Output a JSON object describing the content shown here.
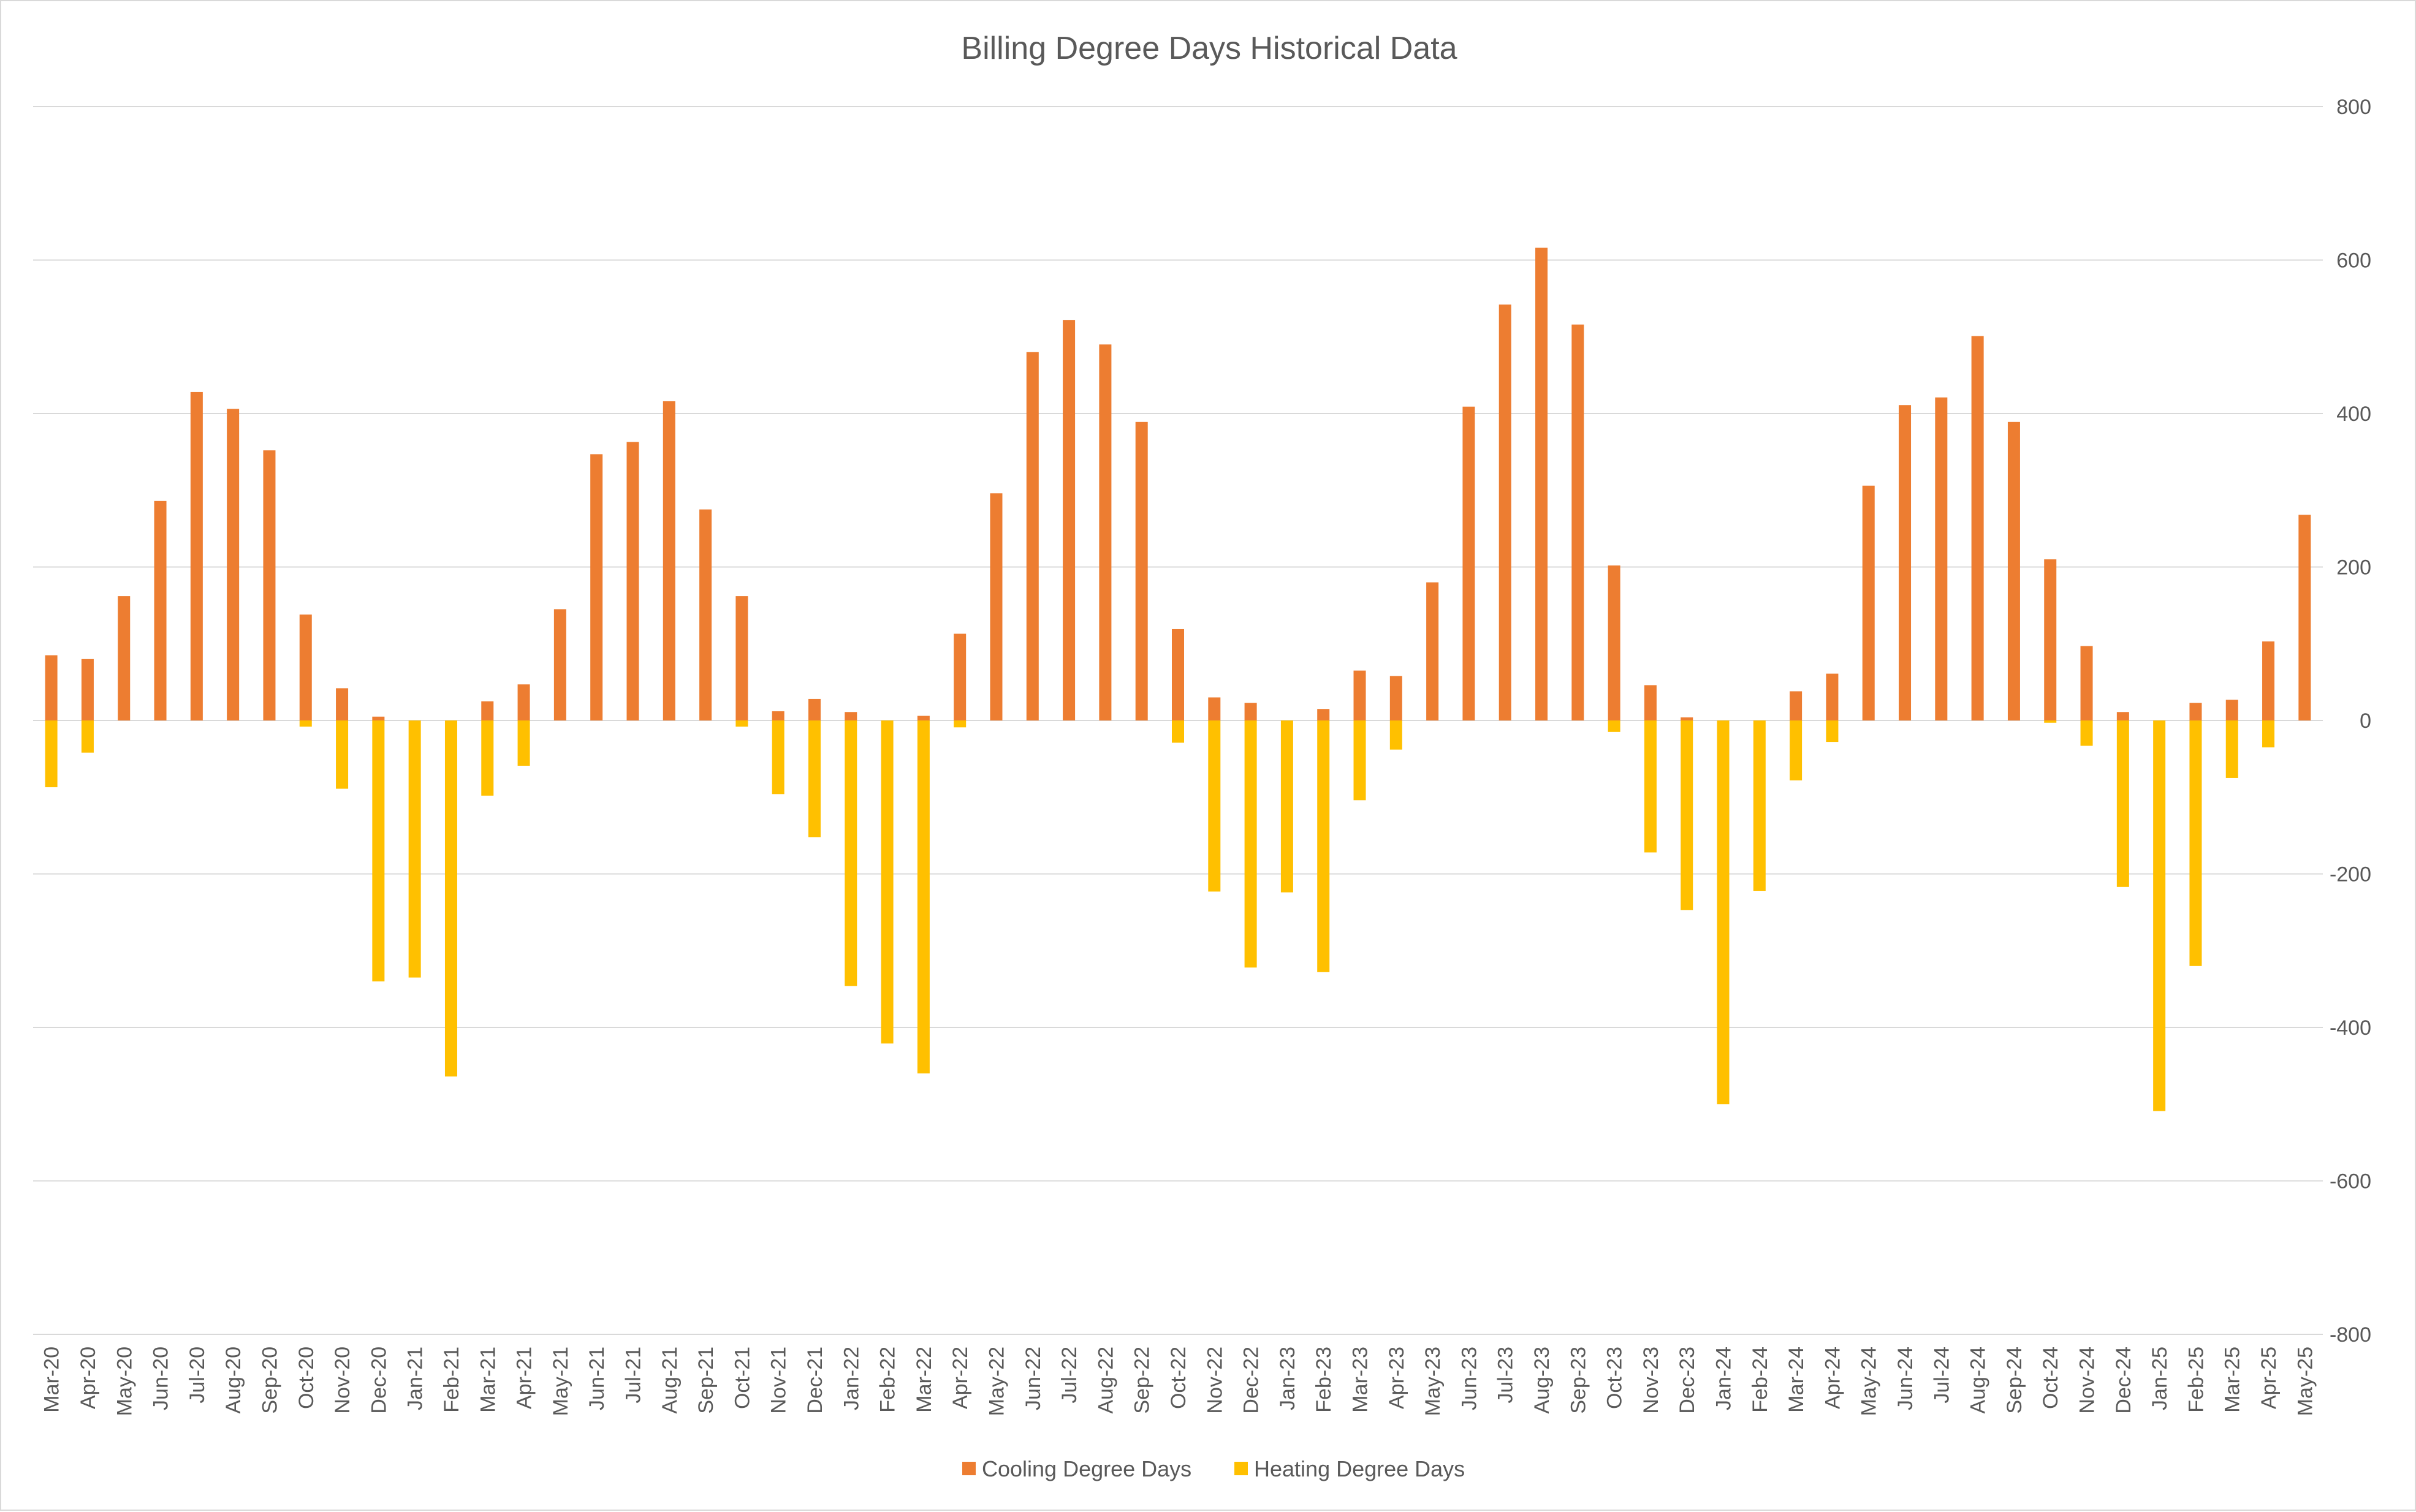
{
  "chart_data": {
    "type": "bar",
    "title": "Billing Degree Days Historical Data",
    "xlabel": "",
    "ylabel": "",
    "ylim": [
      -800,
      800
    ],
    "yticks": [
      800,
      600,
      400,
      200,
      0,
      -200,
      -400,
      -600,
      -800
    ],
    "y_axis_side": "right",
    "grid": true,
    "legend": "bottom",
    "categories": [
      "Mar-20",
      "Apr-20",
      "May-20",
      "Jun-20",
      "Jul-20",
      "Aug-20",
      "Sep-20",
      "Oct-20",
      "Nov-20",
      "Dec-20",
      "Jan-21",
      "Feb-21",
      "Mar-21",
      "Apr-21",
      "May-21",
      "Jun-21",
      "Jul-21",
      "Aug-21",
      "Sep-21",
      "Oct-21",
      "Nov-21",
      "Dec-21",
      "Jan-22",
      "Feb-22",
      "Mar-22",
      "Apr-22",
      "May-22",
      "Jun-22",
      "Jul-22",
      "Aug-22",
      "Sep-22",
      "Oct-22",
      "Nov-22",
      "Dec-22",
      "Jan-23",
      "Feb-23",
      "Mar-23",
      "Apr-23",
      "May-23",
      "Jun-23",
      "Jul-23",
      "Aug-23",
      "Sep-23",
      "Oct-23",
      "Nov-23",
      "Dec-23",
      "Jan-24",
      "Feb-24",
      "Mar-24",
      "Apr-24",
      "May-24",
      "Jun-24",
      "Jul-24",
      "Aug-24",
      "Sep-24",
      "Oct-24",
      "Nov-24",
      "Dec-24",
      "Jan-25",
      "Feb-25",
      "Mar-25",
      "Apr-25",
      "May-25"
    ],
    "series": [
      {
        "name": "Cooling Degree Days",
        "color": "#ED7D31",
        "values": [
          85,
          80,
          162,
          286,
          428,
          406,
          352,
          138,
          42,
          5,
          0,
          0,
          25,
          47,
          145,
          347,
          363,
          416,
          275,
          162,
          12,
          28,
          11,
          0,
          6,
          113,
          296,
          480,
          522,
          490,
          389,
          119,
          30,
          23,
          0,
          15,
          65,
          58,
          180,
          409,
          542,
          616,
          516,
          202,
          46,
          4,
          0,
          0,
          38,
          61,
          306,
          411,
          421,
          501,
          389,
          210,
          97,
          11,
          0,
          23,
          27,
          103,
          268
        ]
      },
      {
        "name": "Heating Degree Days",
        "color": "#FFC000",
        "values": [
          -87,
          -42,
          0,
          0,
          0,
          0,
          0,
          -8,
          -89,
          -340,
          -335,
          -464,
          -98,
          -59,
          0,
          0,
          0,
          0,
          0,
          -8,
          -96,
          -152,
          -346,
          -421,
          -460,
          -9,
          0,
          0,
          0,
          0,
          0,
          -29,
          -223,
          -322,
          -224,
          -328,
          -104,
          -38,
          0,
          0,
          0,
          0,
          0,
          -15,
          -172,
          -247,
          -500,
          -222,
          -78,
          -28,
          0,
          0,
          0,
          0,
          0,
          -3,
          -33,
          -217,
          -509,
          -320,
          -75,
          -35,
          0
        ]
      }
    ]
  }
}
